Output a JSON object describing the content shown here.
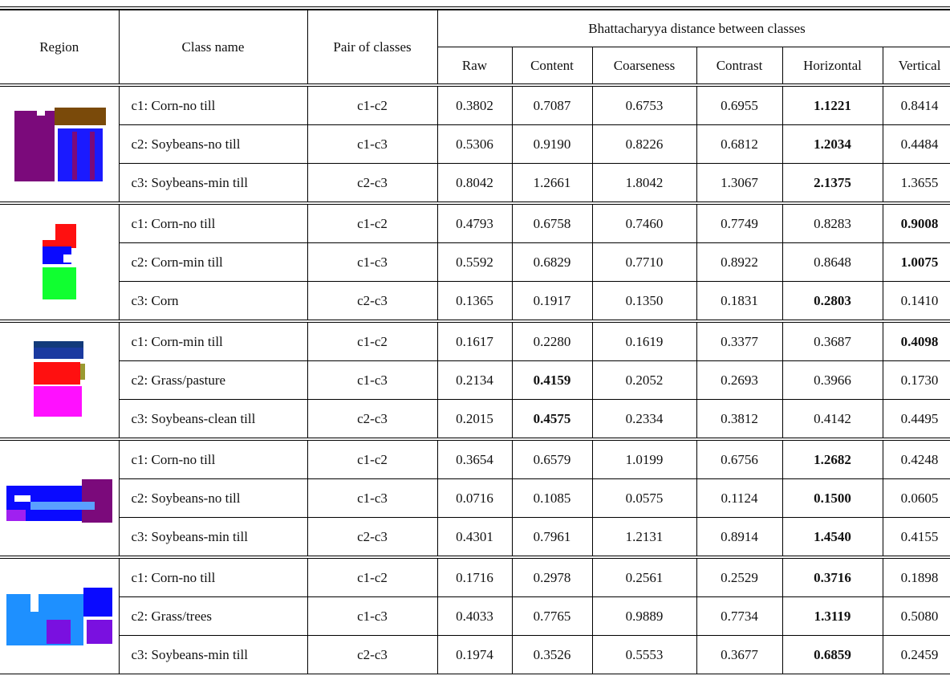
{
  "header": {
    "region": "Region",
    "class_name": "Class name",
    "pair": "Pair of classes",
    "span_title": "Bhattacharyya distance between classes",
    "columns": [
      "Raw",
      "Content",
      "Coarseness",
      "Contrast",
      "Horizontal",
      "Vertical"
    ]
  },
  "groups": [
    {
      "classes": [
        "c1: Corn-no till",
        "c2: Soybeans-no till",
        "c3: Soybeans-min till"
      ],
      "rows": [
        {
          "pair": "c1-c2",
          "values": [
            "0.3802",
            "0.7087",
            "0.6753",
            "0.6955",
            "1.1221",
            "0.8414"
          ],
          "bold": 4
        },
        {
          "pair": "c1-c3",
          "values": [
            "0.5306",
            "0.9190",
            "0.8226",
            "0.6812",
            "1.2034",
            "0.4484"
          ],
          "bold": 4
        },
        {
          "pair": "c2-c3",
          "values": [
            "0.8042",
            "1.2661",
            "1.8042",
            "1.3067",
            "2.1375",
            "1.3655"
          ],
          "bold": 4
        }
      ]
    },
    {
      "classes": [
        "c1: Corn-no till",
        "c2: Corn-min till",
        "c3: Corn"
      ],
      "rows": [
        {
          "pair": "c1-c2",
          "values": [
            "0.4793",
            "0.6758",
            "0.7460",
            "0.7749",
            "0.8283",
            "0.9008"
          ],
          "bold": 5
        },
        {
          "pair": "c1-c3",
          "values": [
            "0.5592",
            "0.6829",
            "0.7710",
            "0.8922",
            "0.8648",
            "1.0075"
          ],
          "bold": 5
        },
        {
          "pair": "c2-c3",
          "values": [
            "0.1365",
            "0.1917",
            "0.1350",
            "0.1831",
            "0.2803",
            "0.1410"
          ],
          "bold": 4
        }
      ]
    },
    {
      "classes": [
        "c1: Corn-min till",
        "c2: Grass/pasture",
        "c3: Soybeans-clean till"
      ],
      "rows": [
        {
          "pair": "c1-c2",
          "values": [
            "0.1617",
            "0.2280",
            "0.1619",
            "0.3377",
            "0.3687",
            "0.4098"
          ],
          "bold": 5
        },
        {
          "pair": "c1-c3",
          "values": [
            "0.2134",
            "0.4159",
            "0.2052",
            "0.2693",
            "0.3966",
            "0.1730"
          ],
          "bold": 1
        },
        {
          "pair": "c2-c3",
          "values": [
            "0.2015",
            "0.4575",
            "0.2334",
            "0.3812",
            "0.4142",
            "0.4495"
          ],
          "bold": 1
        }
      ]
    },
    {
      "classes": [
        "c1: Corn-no till",
        "c2: Soybeans-no till",
        "c3: Soybeans-min till"
      ],
      "rows": [
        {
          "pair": "c1-c2",
          "values": [
            "0.3654",
            "0.6579",
            "1.0199",
            "0.6756",
            "1.2682",
            "0.4248"
          ],
          "bold": 4
        },
        {
          "pair": "c1-c3",
          "values": [
            "0.0716",
            "0.1085",
            "0.0575",
            "0.1124",
            "0.1500",
            "0.0605"
          ],
          "bold": 4
        },
        {
          "pair": "c2-c3",
          "values": [
            "0.4301",
            "0.7961",
            "1.2131",
            "0.8914",
            "1.4540",
            "0.4155"
          ],
          "bold": 4
        }
      ]
    },
    {
      "classes": [
        "c1: Corn-no till",
        "c2: Grass/trees",
        "c3: Soybeans-min till"
      ],
      "rows": [
        {
          "pair": "c1-c2",
          "values": [
            "0.1716",
            "0.2978",
            "0.2561",
            "0.2529",
            "0.3716",
            "0.1898"
          ],
          "bold": 4
        },
        {
          "pair": "c1-c3",
          "values": [
            "0.4033",
            "0.7765",
            "0.9889",
            "0.7734",
            "1.3119",
            "0.5080"
          ],
          "bold": 4
        },
        {
          "pair": "c2-c3",
          "values": [
            "0.1974",
            "0.3526",
            "0.5553",
            "0.3677",
            "0.6859",
            "0.2459"
          ],
          "bold": 4
        }
      ]
    }
  ]
}
